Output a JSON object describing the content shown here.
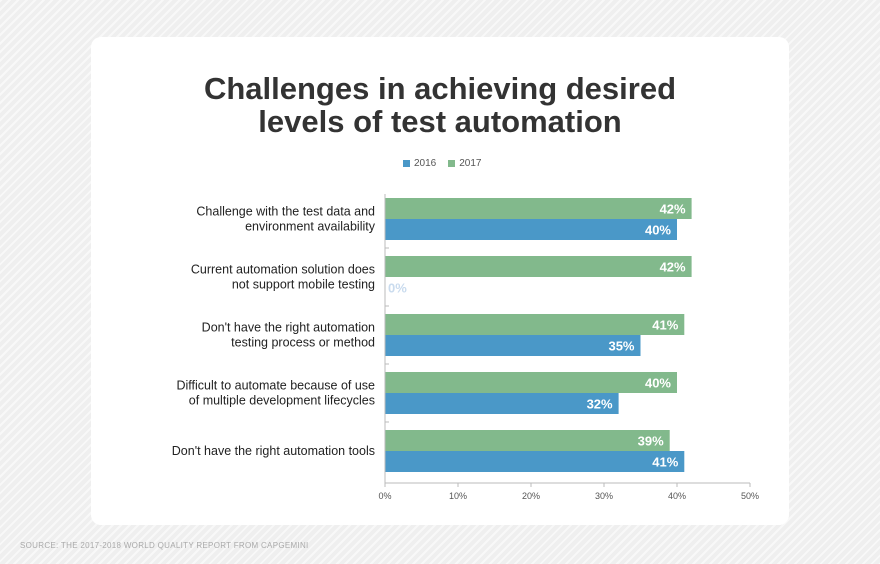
{
  "title_lines": [
    "Challenges in achieving desired",
    "levels of test automation"
  ],
  "source": "SOURCE: THE 2017-2018 WORLD QUALITY REPORT FROM CAPGEMINI",
  "colors": {
    "2016": "#4a98c8",
    "2017": "#82b98c"
  },
  "chart_data": {
    "type": "bar",
    "orientation": "horizontal",
    "categories": [
      [
        "Challenge with the test data and",
        "environment availability"
      ],
      [
        "Current automation solution does",
        "not support mobile testing"
      ],
      [
        "Don't have the right automation",
        "testing process or method"
      ],
      [
        "Difficult to automate because of use",
        "of multiple development lifecycles"
      ],
      [
        "Don't have the right automation tools"
      ]
    ],
    "series": [
      {
        "name": "2016",
        "values": [
          40,
          0,
          35,
          32,
          41
        ]
      },
      {
        "name": "2017",
        "values": [
          42,
          42,
          41,
          40,
          39
        ]
      }
    ],
    "value_labels": {
      "2016": [
        "40%",
        "0%",
        "35%",
        "32%",
        "41%"
      ],
      "2017": [
        "42%",
        "42%",
        "41%",
        "40%",
        "39%"
      ]
    },
    "xlim": [
      0,
      50
    ],
    "xticks": [
      0,
      10,
      20,
      30,
      40,
      50
    ],
    "xtick_labels": [
      "0%",
      "10%",
      "20%",
      "30%",
      "40%",
      "50%"
    ],
    "legend": "top",
    "grid": false
  }
}
